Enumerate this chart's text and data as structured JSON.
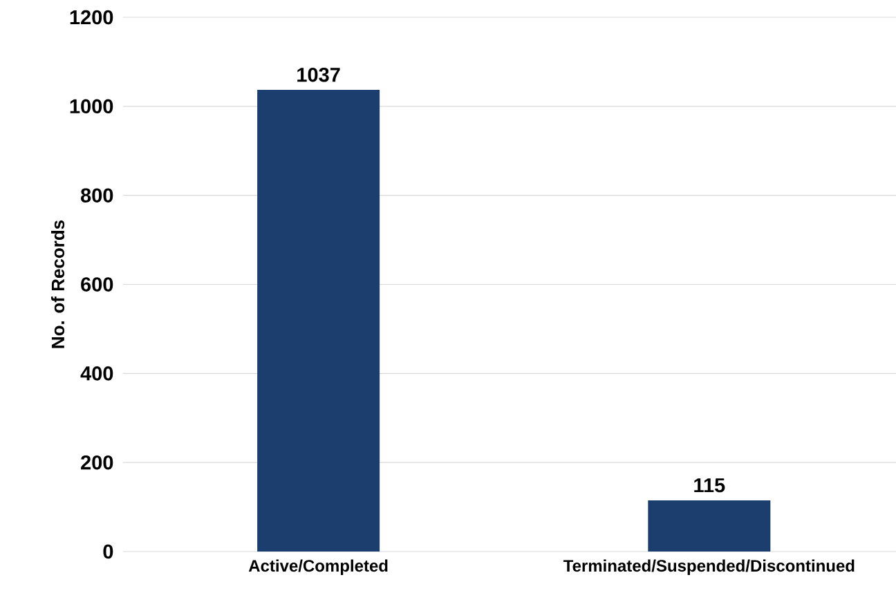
{
  "chart_data": {
    "type": "bar",
    "ylabel": "No. of Records",
    "categories": [
      "Active/Completed",
      "Terminated/Suspended/Discontinued"
    ],
    "values": [
      1037,
      115
    ],
    "color": "#1b3e6f",
    "ylim": [
      0,
      1200
    ],
    "yticks": [
      0,
      200,
      400,
      600,
      800,
      1000,
      1200
    ],
    "grid": "y",
    "data_labels": true
  }
}
